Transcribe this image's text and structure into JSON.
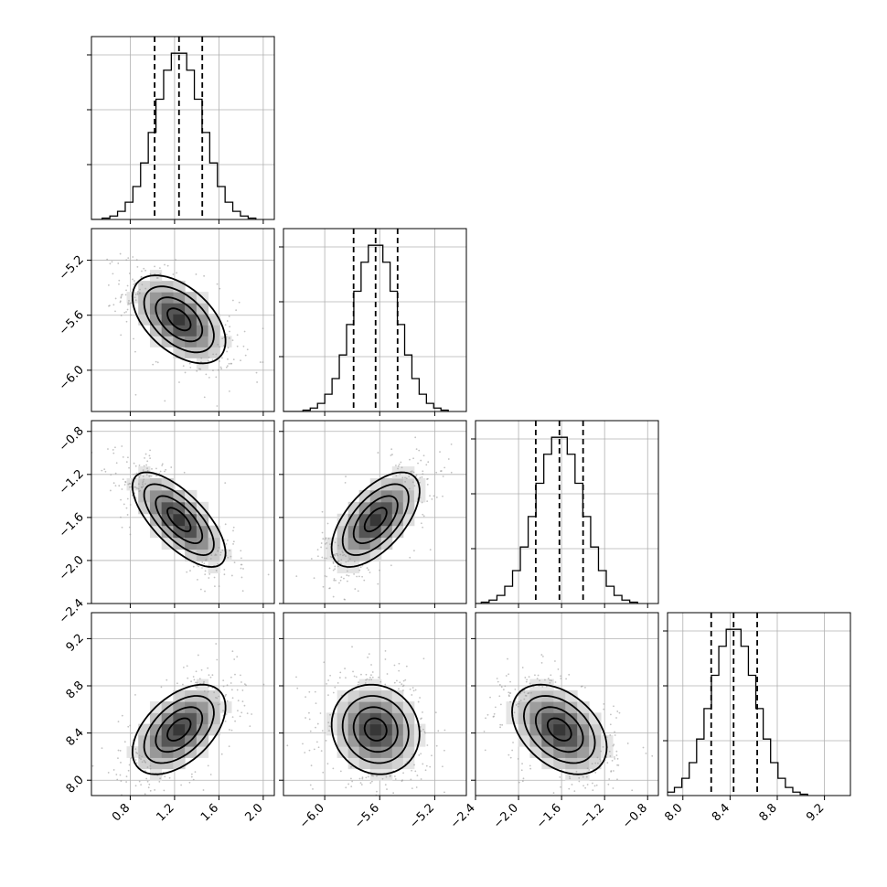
{
  "chart_data": {
    "type": "corner",
    "parameters": [
      {
        "index": 0,
        "range": [
          0.45,
          2.1
        ],
        "ticks": [
          0.8,
          1.2,
          1.6,
          2.0
        ],
        "tick_labels": [
          "0.8",
          "1.2",
          "1.6",
          "2.0"
        ],
        "quantiles": [
          1.02,
          1.24,
          1.45
        ],
        "mean": 1.24,
        "sd": 0.21
      },
      {
        "index": 1,
        "range": [
          -6.3,
          -4.97
        ],
        "ticks": [
          -6.0,
          -5.6,
          -5.2
        ],
        "tick_labels": [
          "−6.0",
          "−5.6",
          "−5.2"
        ],
        "quantiles": [
          -5.79,
          -5.63,
          -5.47
        ],
        "mean": -5.63,
        "sd": 0.16
      },
      {
        "index": 2,
        "range": [
          -2.4,
          -0.7
        ],
        "ticks": [
          -2.4,
          -2.0,
          -1.6,
          -1.2,
          -0.8
        ],
        "tick_labels": [
          "−2.4",
          "−2.0",
          "−1.6",
          "−1.2",
          "−0.8"
        ],
        "quantiles": [
          -1.84,
          -1.62,
          -1.4
        ],
        "mean": -1.62,
        "sd": 0.22
      },
      {
        "index": 3,
        "range": [
          7.87,
          9.42
        ],
        "ticks": [
          8.0,
          8.4,
          8.8,
          9.2
        ],
        "tick_labels": [
          "8.0",
          "8.4",
          "8.8",
          "9.2"
        ],
        "quantiles": [
          8.24,
          8.43,
          8.63
        ],
        "mean": 8.43,
        "sd": 0.19
      }
    ],
    "correlations": [
      {
        "pair": [
          0,
          1
        ],
        "rho": -0.5
      },
      {
        "pair": [
          0,
          2
        ],
        "rho": -0.7
      },
      {
        "pair": [
          0,
          3
        ],
        "rho": 0.5
      },
      {
        "pair": [
          1,
          2
        ],
        "rho": 0.6
      },
      {
        "pair": [
          1,
          3
        ],
        "rho": -0.1
      },
      {
        "pair": [
          2,
          3
        ],
        "rho": -0.4
      }
    ],
    "histogram_bins": 20,
    "contour_levels_sigma": [
      0.5,
      1.0,
      1.5,
      2.0
    ],
    "grid": true
  }
}
